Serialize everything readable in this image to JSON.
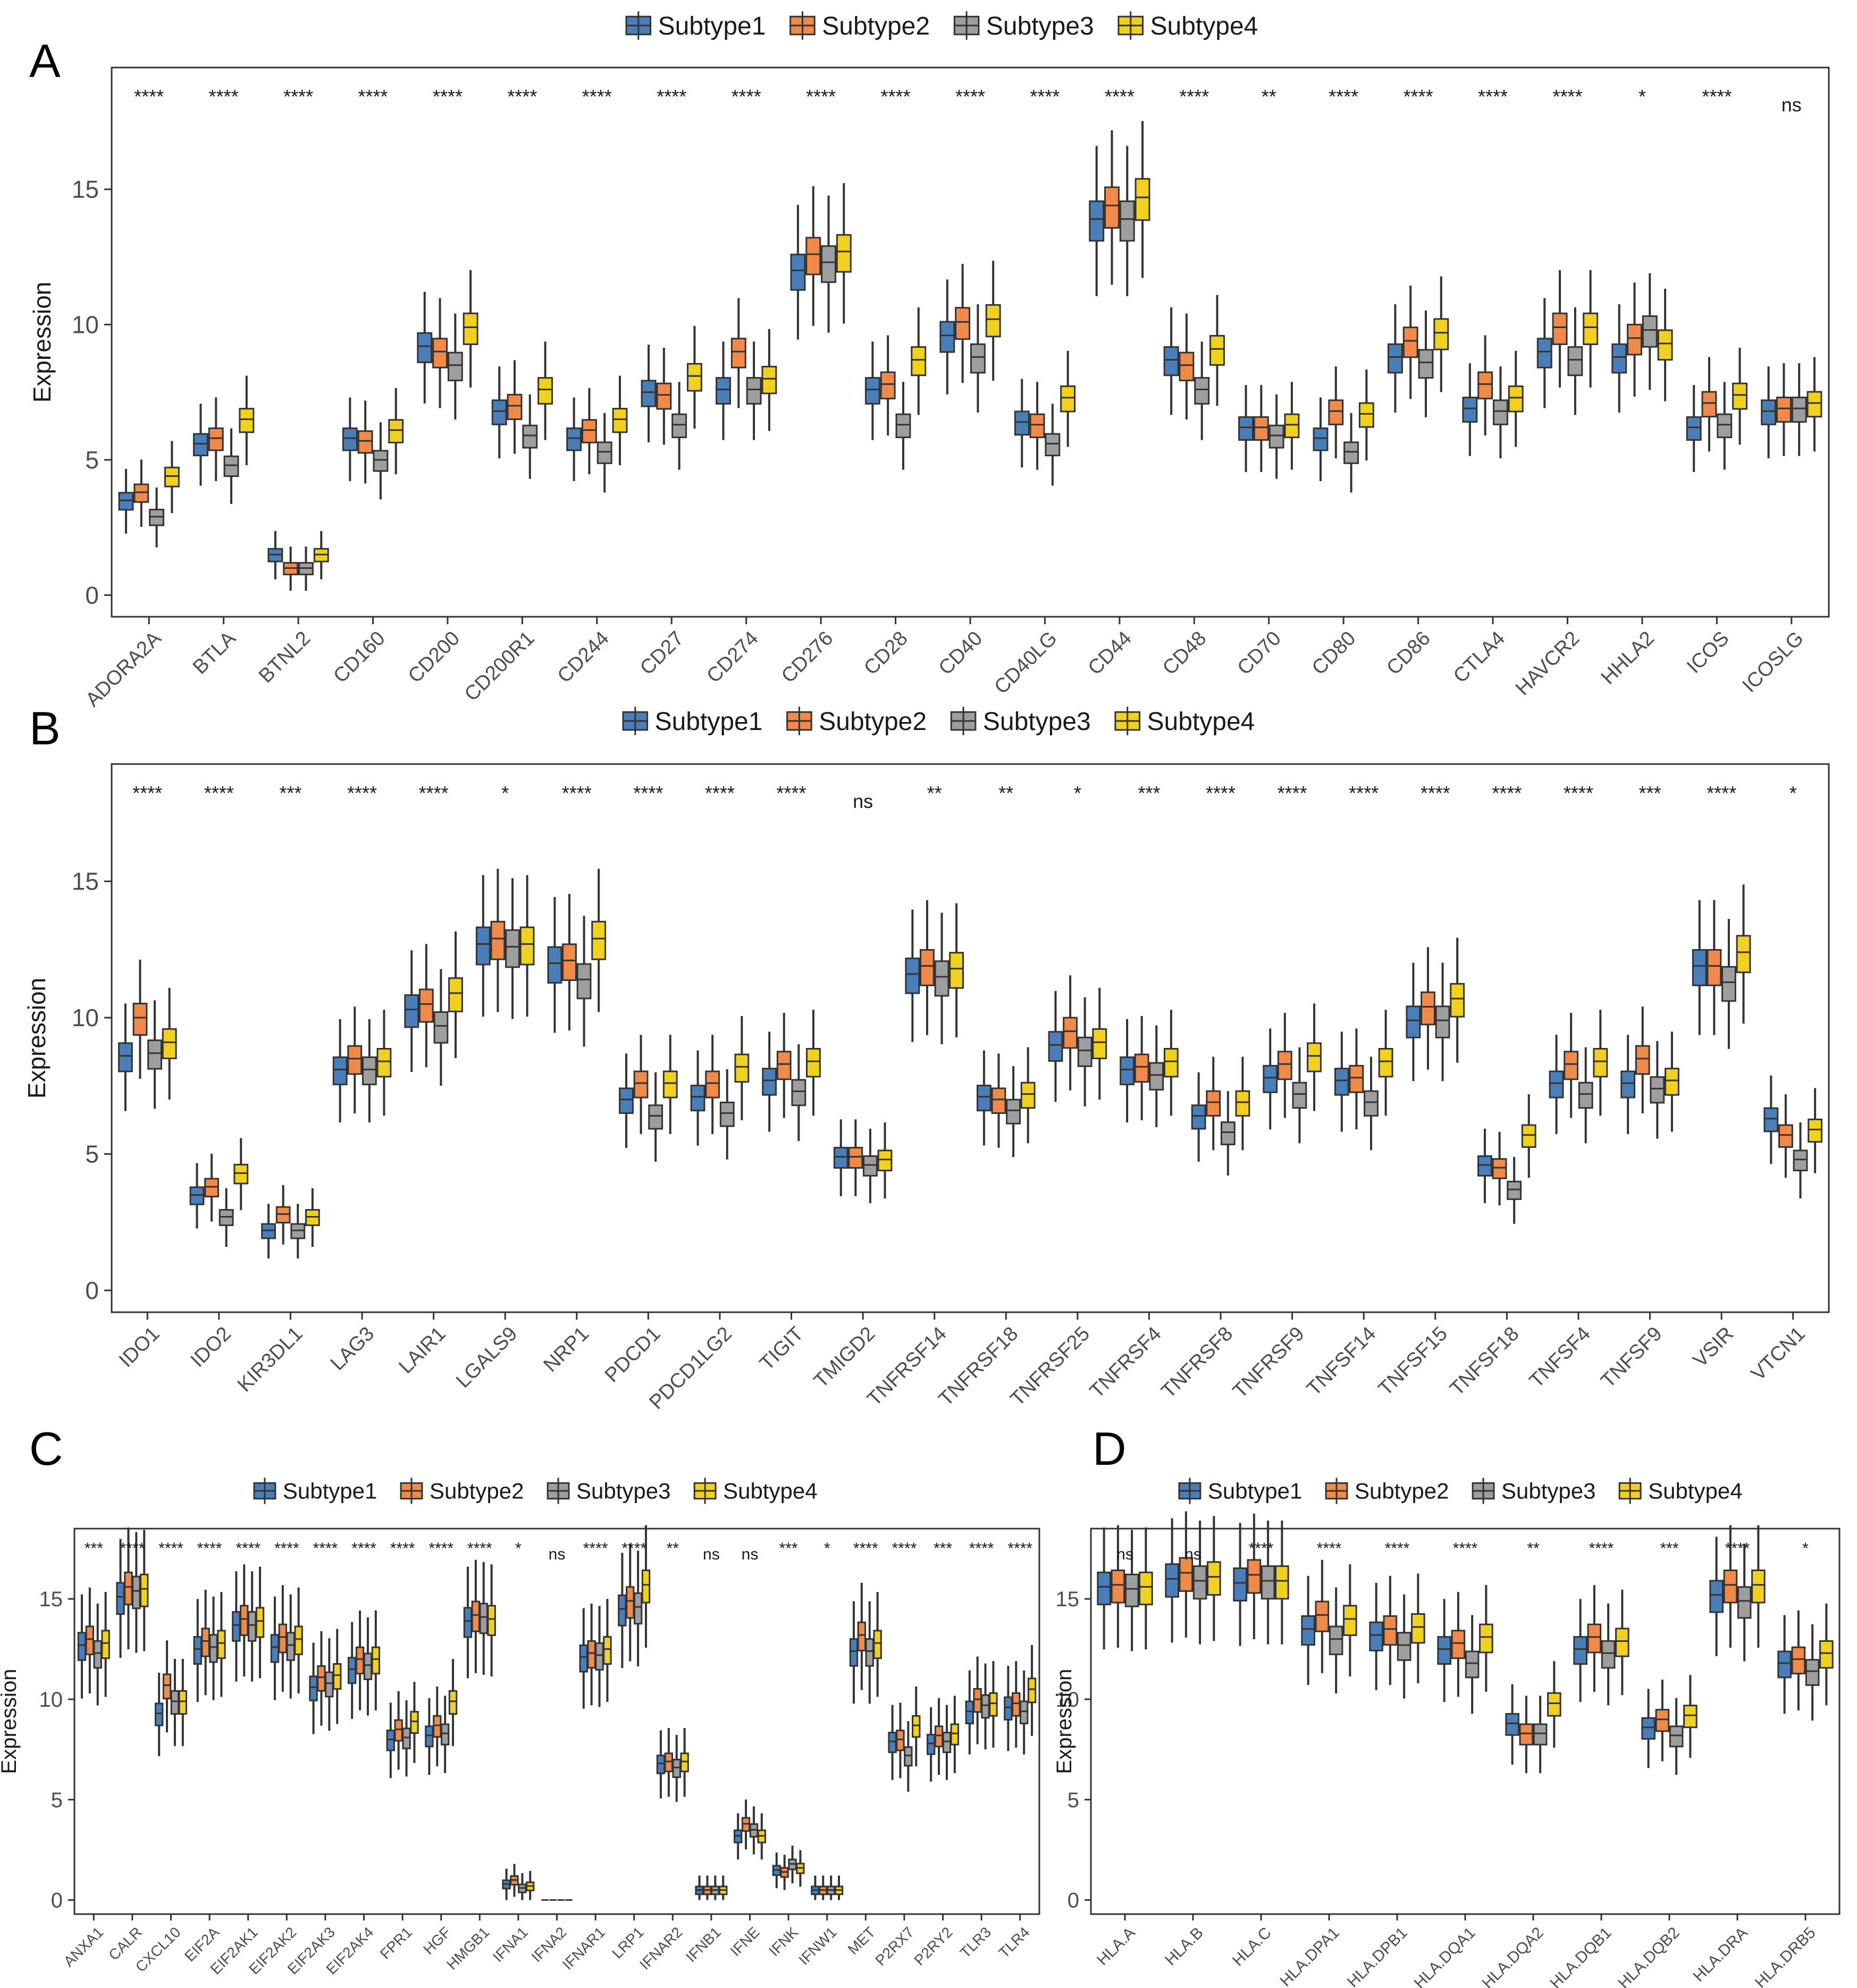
{
  "figure": {
    "legend_labels": [
      "Subtype1",
      "Subtype2",
      "Subtype3",
      "Subtype4"
    ],
    "colors": {
      "Subtype1": "#4a7eb8",
      "Subtype2": "#f08a4b",
      "Subtype3": "#9e9e9e",
      "Subtype4": "#f1d11d",
      "outline": "#333333"
    }
  },
  "chart_data": [
    {
      "panel_label": "A",
      "type": "boxplot",
      "ylabel": "Expression",
      "ylim": [
        -0.8,
        19.5
      ],
      "yticks": [
        0,
        5,
        10,
        15
      ],
      "series": [
        "Subtype1",
        "Subtype2",
        "Subtype3",
        "Subtype4"
      ],
      "categories": [
        "ADORA2A",
        "BTLA",
        "BTNL2",
        "CD160",
        "CD200",
        "CD200R1",
        "CD244",
        "CD27",
        "CD274",
        "CD276",
        "CD28",
        "CD40",
        "CD40LG",
        "CD44",
        "CD48",
        "CD70",
        "CD80",
        "CD86",
        "CTLA4",
        "HAVCR2",
        "HHLA2",
        "ICOS",
        "ICOSLG"
      ],
      "significance": [
        "****",
        "****",
        "****",
        "****",
        "****",
        "****",
        "****",
        "****",
        "****",
        "****",
        "****",
        "****",
        "****",
        "****",
        "****",
        "**",
        "****",
        "****",
        "****",
        "****",
        "*",
        "****",
        "ns"
      ],
      "medians": [
        [
          3.5,
          3.8,
          2.9,
          4.4
        ],
        [
          5.6,
          5.8,
          4.8,
          6.5
        ],
        [
          1.5,
          1.0,
          1.0,
          1.5
        ],
        [
          5.8,
          5.7,
          5.0,
          6.1
        ],
        [
          9.2,
          9.0,
          8.5,
          9.9
        ],
        [
          6.8,
          7.0,
          5.9,
          7.6
        ],
        [
          5.8,
          6.1,
          5.3,
          6.5
        ],
        [
          7.5,
          7.4,
          6.3,
          8.1
        ],
        [
          7.6,
          9.0,
          7.6,
          8.0
        ],
        [
          12.0,
          12.6,
          12.3,
          12.7
        ],
        [
          7.6,
          7.8,
          6.3,
          8.7
        ],
        [
          9.6,
          10.1,
          8.8,
          10.2
        ],
        [
          6.4,
          6.3,
          5.6,
          7.3
        ],
        [
          13.9,
          14.4,
          13.9,
          14.7
        ],
        [
          8.7,
          8.5,
          7.6,
          9.1
        ],
        [
          6.2,
          6.2,
          5.9,
          6.3
        ],
        [
          5.8,
          6.8,
          5.3,
          6.7
        ],
        [
          8.8,
          9.4,
          8.6,
          9.7
        ],
        [
          6.9,
          7.8,
          6.8,
          7.3
        ],
        [
          9.0,
          9.9,
          8.7,
          9.9
        ],
        [
          8.8,
          9.5,
          9.8,
          9.3
        ],
        [
          6.2,
          7.1,
          6.3,
          7.4
        ],
        [
          6.8,
          6.9,
          6.9,
          7.1
        ]
      ]
    },
    {
      "panel_label": "B",
      "type": "boxplot",
      "ylabel": "Expression",
      "ylim": [
        -0.8,
        19.3
      ],
      "yticks": [
        0,
        5,
        10,
        15
      ],
      "series": [
        "Subtype1",
        "Subtype2",
        "Subtype3",
        "Subtype4"
      ],
      "categories": [
        "IDO1",
        "IDO2",
        "KIR3DL1",
        "LAG3",
        "LAIR1",
        "LGALS9",
        "NRP1",
        "PDCD1",
        "PDCD1LG2",
        "TIGIT",
        "TMIGD2",
        "TNFRSF14",
        "TNFRSF18",
        "TNFRSF25",
        "TNFRSF4",
        "TNFRSF8",
        "TNFRSF9",
        "TNFSF14",
        "TNFSF15",
        "TNFSF18",
        "TNFSF4",
        "TNFSF9",
        "VSIR",
        "VTCN1"
      ],
      "significance": [
        "****",
        "****",
        "***",
        "****",
        "****",
        "*",
        "****",
        "****",
        "****",
        "****",
        "ns",
        "**",
        "**",
        "*",
        "***",
        "****",
        "****",
        "****",
        "****",
        "****",
        "****",
        "***",
        "****",
        "*"
      ],
      "medians": [
        [
          8.6,
          10.0,
          8.7,
          9.1
        ],
        [
          3.5,
          3.8,
          2.7,
          4.3
        ],
        [
          2.2,
          2.8,
          2.2,
          2.7
        ],
        [
          8.1,
          8.5,
          8.1,
          8.4
        ],
        [
          10.3,
          10.5,
          9.7,
          10.9
        ],
        [
          12.7,
          12.9,
          12.6,
          12.7
        ],
        [
          12.0,
          12.1,
          11.4,
          12.9
        ],
        [
          7.0,
          7.6,
          6.4,
          7.6
        ],
        [
          7.1,
          7.6,
          6.5,
          8.2
        ],
        [
          7.7,
          8.3,
          7.3,
          8.4
        ],
        [
          4.9,
          4.9,
          4.6,
          4.8
        ],
        [
          11.6,
          11.9,
          11.5,
          11.8
        ],
        [
          7.1,
          7.0,
          6.6,
          7.2
        ],
        [
          9.0,
          9.5,
          8.8,
          9.1
        ],
        [
          8.1,
          8.2,
          7.9,
          8.4
        ],
        [
          6.4,
          6.9,
          5.8,
          6.9
        ],
        [
          7.8,
          8.3,
          7.2,
          8.6
        ],
        [
          7.7,
          7.8,
          6.9,
          8.4
        ],
        [
          9.9,
          10.4,
          9.9,
          10.7
        ],
        [
          4.6,
          4.5,
          3.7,
          5.7
        ],
        [
          7.6,
          8.3,
          7.2,
          8.4
        ],
        [
          7.6,
          8.5,
          7.4,
          7.7
        ],
        [
          11.9,
          11.9,
          11.3,
          12.4
        ],
        [
          6.3,
          5.7,
          4.8,
          5.9
        ]
      ]
    },
    {
      "panel_label": "C",
      "type": "boxplot",
      "ylabel": "Expression",
      "ylim": [
        -0.7,
        18.5
      ],
      "yticks": [
        0,
        5,
        10,
        15
      ],
      "series": [
        "Subtype1",
        "Subtype2",
        "Subtype3",
        "Subtype4"
      ],
      "categories": [
        "ANXA1",
        "CALR",
        "CXCL10",
        "EIF2A",
        "EIF2AK1",
        "EIF2AK2",
        "EIF2AK3",
        "EIF2AK4",
        "FPR1",
        "HGF",
        "HMGB1",
        "IFNA1",
        "IFNA2",
        "IFNAR1",
        "LRP1",
        "IFNAR2",
        "IFNB1",
        "IFNE",
        "IFNK",
        "IFNW1",
        "MET",
        "P2RX7",
        "P2RY2",
        "TLR3",
        "TLR4"
      ],
      "significance": [
        "***",
        "****",
        "****",
        "****",
        "****",
        "****",
        "****",
        "****",
        "****",
        "****",
        "****",
        "*",
        "ns",
        "****",
        "****",
        "**",
        "ns",
        "ns",
        "***",
        "*",
        "****",
        "****",
        "***",
        "****",
        "****"
      ],
      "medians": [
        [
          12.7,
          13.0,
          12.3,
          12.8
        ],
        [
          15.1,
          15.6,
          15.4,
          15.5
        ],
        [
          9.3,
          10.7,
          9.9,
          9.9
        ],
        [
          12.5,
          12.9,
          12.6,
          12.8
        ],
        [
          13.7,
          14.0,
          13.7,
          13.9
        ],
        [
          12.6,
          13.1,
          12.7,
          13.0
        ],
        [
          10.6,
          11.1,
          10.8,
          11.2
        ],
        [
          11.5,
          12.0,
          11.7,
          12.0
        ],
        [
          8.0,
          8.5,
          8.1,
          8.9
        ],
        [
          8.2,
          8.7,
          8.3,
          9.9
        ],
        [
          13.9,
          14.2,
          14.1,
          14.0
        ],
        [
          0.8,
          1.0,
          0.6,
          0.7
        ],
        [
          0,
          0,
          0,
          0
        ],
        [
          12.1,
          12.3,
          12.2,
          12.5
        ],
        [
          14.5,
          14.9,
          14.6,
          15.7
        ],
        [
          6.8,
          6.9,
          6.6,
          6.9
        ],
        [
          0.5,
          0.5,
          0.5,
          0.5
        ],
        [
          3.2,
          3.8,
          3.5,
          3.2
        ],
        [
          1.5,
          1.4,
          1.8,
          1.6
        ],
        [
          0.5,
          0.5,
          0.5,
          0.5
        ],
        [
          12.4,
          13.2,
          12.4,
          12.8
        ],
        [
          7.9,
          8.0,
          7.2,
          8.7
        ],
        [
          7.8,
          8.2,
          7.9,
          8.3
        ],
        [
          9.4,
          10.0,
          9.7,
          9.8
        ],
        [
          9.6,
          9.8,
          9.4,
          10.5
        ]
      ]
    },
    {
      "panel_label": "D",
      "type": "boxplot",
      "ylabel": "Expression",
      "ylim": [
        -0.7,
        18.5
      ],
      "yticks": [
        0,
        5,
        10,
        15
      ],
      "series": [
        "Subtype1",
        "Subtype2",
        "Subtype3",
        "Subtype4"
      ],
      "categories": [
        "HLA.A",
        "HLA.B",
        "HLA.C",
        "HLA.DPA1",
        "HLA.DPB1",
        "HLA.DQA1",
        "HLA.DQA2",
        "HLA.DQB1",
        "HLA.DQB2",
        "HLA.DRA",
        "HLA.DRB5"
      ],
      "significance": [
        "ns",
        "ns",
        "****",
        "****",
        "****",
        "****",
        "**",
        "****",
        "***",
        "****",
        "*"
      ],
      "medians": [
        [
          15.6,
          15.7,
          15.5,
          15.6
        ],
        [
          16.0,
          16.3,
          15.9,
          16.1
        ],
        [
          15.8,
          16.2,
          15.9,
          15.9
        ],
        [
          13.5,
          14.2,
          13.0,
          14.0
        ],
        [
          13.2,
          13.5,
          12.7,
          13.6
        ],
        [
          12.5,
          12.8,
          11.8,
          13.1
        ],
        [
          8.8,
          8.3,
          8.3,
          9.8
        ],
        [
          12.5,
          13.1,
          12.3,
          12.9
        ],
        [
          8.6,
          9.0,
          8.2,
          9.2
        ],
        [
          15.2,
          15.7,
          14.9,
          15.7
        ],
        [
          11.8,
          12.0,
          11.4,
          12.3
        ]
      ]
    }
  ]
}
